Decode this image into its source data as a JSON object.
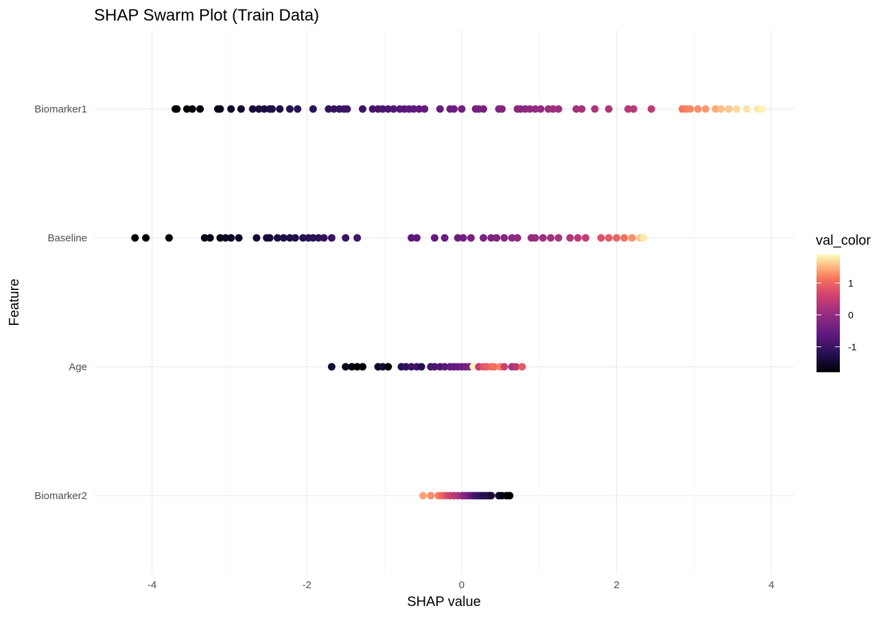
{
  "chart_data": {
    "type": "scatter",
    "subtype": "swarm",
    "title": "SHAP Swarm Plot (Train Data)",
    "xlabel": "SHAP value",
    "ylabel": "Feature",
    "xlim": [
      -4.75,
      4.3
    ],
    "x_ticks": [
      -4,
      -2,
      0,
      2,
      4
    ],
    "x_tick_labels": [
      "-4",
      "-2",
      "0",
      "2",
      "4"
    ],
    "features": [
      "Biomarker1",
      "Baseline",
      "Age",
      "Biomarker2"
    ],
    "grid": true,
    "legend": {
      "title": "val_color",
      "position": "right",
      "colormap": "magma",
      "range": [
        -1.8,
        1.9
      ],
      "ticks": [
        -1,
        0,
        1
      ],
      "tick_labels": [
        "-1",
        "0",
        "1"
      ]
    },
    "series": [
      {
        "feature": "Biomarker1",
        "points": [
          [
            -3.7,
            -1.8
          ],
          [
            -3.68,
            -1.8
          ],
          [
            -3.55,
            -1.75
          ],
          [
            -3.48,
            -1.75
          ],
          [
            -3.38,
            -1.7
          ],
          [
            -3.15,
            -1.65
          ],
          [
            -3.12,
            -1.65
          ],
          [
            -2.98,
            -1.55
          ],
          [
            -2.85,
            -1.5
          ],
          [
            -2.7,
            -1.4
          ],
          [
            -2.62,
            -1.4
          ],
          [
            -2.55,
            -1.35
          ],
          [
            -2.48,
            -1.35
          ],
          [
            -2.45,
            -1.3
          ],
          [
            -2.35,
            -1.3
          ],
          [
            -2.22,
            -1.25
          ],
          [
            -2.12,
            -1.2
          ],
          [
            -1.92,
            -1.15
          ],
          [
            -1.72,
            -1.1
          ],
          [
            -1.65,
            -1.05
          ],
          [
            -1.58,
            -1.05
          ],
          [
            -1.52,
            -1.0
          ],
          [
            -1.48,
            -1.0
          ],
          [
            -1.28,
            -0.95
          ],
          [
            -1.15,
            -0.9
          ],
          [
            -1.08,
            -0.9
          ],
          [
            -1.02,
            -0.85
          ],
          [
            -0.95,
            -0.8
          ],
          [
            -0.88,
            -0.75
          ],
          [
            -0.8,
            -0.7
          ],
          [
            -0.74,
            -0.7
          ],
          [
            -0.68,
            -0.65
          ],
          [
            -0.62,
            -0.6
          ],
          [
            -0.55,
            -0.6
          ],
          [
            -0.48,
            -0.55
          ],
          [
            -0.28,
            -0.5
          ],
          [
            -0.15,
            -0.45
          ],
          [
            -0.1,
            -0.45
          ],
          [
            0.0,
            -0.4
          ],
          [
            0.18,
            -0.35
          ],
          [
            0.22,
            -0.3
          ],
          [
            0.28,
            -0.3
          ],
          [
            0.48,
            -0.25
          ],
          [
            0.52,
            -0.2
          ],
          [
            0.72,
            -0.15
          ],
          [
            0.76,
            -0.1
          ],
          [
            0.82,
            -0.1
          ],
          [
            0.88,
            -0.05
          ],
          [
            0.95,
            0.0
          ],
          [
            1.02,
            0.0
          ],
          [
            1.12,
            0.05
          ],
          [
            1.18,
            0.1
          ],
          [
            1.25,
            0.1
          ],
          [
            1.48,
            0.15
          ],
          [
            1.55,
            0.2
          ],
          [
            1.72,
            0.25
          ],
          [
            1.9,
            0.3
          ],
          [
            2.15,
            0.35
          ],
          [
            2.22,
            0.4
          ],
          [
            2.45,
            0.45
          ],
          [
            2.85,
            1.15
          ],
          [
            2.9,
            1.2
          ],
          [
            2.95,
            1.25
          ],
          [
            3.05,
            1.3
          ],
          [
            3.15,
            1.35
          ],
          [
            3.28,
            1.45
          ],
          [
            3.35,
            1.55
          ],
          [
            3.45,
            1.6
          ],
          [
            3.55,
            1.7
          ],
          [
            3.68,
            1.75
          ],
          [
            3.82,
            1.8
          ],
          [
            3.88,
            1.85
          ]
        ]
      },
      {
        "feature": "Baseline",
        "points": [
          [
            -4.22,
            -1.8
          ],
          [
            -4.08,
            -1.8
          ],
          [
            -3.78,
            -1.75
          ],
          [
            -3.32,
            -1.7
          ],
          [
            -3.25,
            -1.7
          ],
          [
            -3.12,
            -1.65
          ],
          [
            -3.05,
            -1.6
          ],
          [
            -2.98,
            -1.6
          ],
          [
            -2.88,
            -1.55
          ],
          [
            -2.65,
            -1.45
          ],
          [
            -2.52,
            -1.4
          ],
          [
            -2.48,
            -1.4
          ],
          [
            -2.38,
            -1.35
          ],
          [
            -2.3,
            -1.35
          ],
          [
            -2.22,
            -1.3
          ],
          [
            -2.15,
            -1.3
          ],
          [
            -2.05,
            -1.25
          ],
          [
            -1.98,
            -1.2
          ],
          [
            -1.92,
            -1.2
          ],
          [
            -1.85,
            -1.15
          ],
          [
            -1.78,
            -1.1
          ],
          [
            -1.68,
            -1.05
          ],
          [
            -1.5,
            -1.0
          ],
          [
            -1.35,
            -0.95
          ],
          [
            -0.65,
            -0.7
          ],
          [
            -0.58,
            -0.65
          ],
          [
            -0.35,
            -0.55
          ],
          [
            -0.22,
            -0.5
          ],
          [
            -0.05,
            -0.45
          ],
          [
            0.02,
            -0.4
          ],
          [
            0.12,
            -0.35
          ],
          [
            0.28,
            -0.3
          ],
          [
            0.38,
            -0.25
          ],
          [
            0.45,
            -0.2
          ],
          [
            0.55,
            -0.15
          ],
          [
            0.65,
            -0.1
          ],
          [
            0.72,
            -0.05
          ],
          [
            0.9,
            0.0
          ],
          [
            0.95,
            0.05
          ],
          [
            1.05,
            0.1
          ],
          [
            1.15,
            0.15
          ],
          [
            1.25,
            0.2
          ],
          [
            1.4,
            0.3
          ],
          [
            1.5,
            0.4
          ],
          [
            1.6,
            0.5
          ],
          [
            1.8,
            0.8
          ],
          [
            1.9,
            0.9
          ],
          [
            2.0,
            1.0
          ],
          [
            2.1,
            1.1
          ],
          [
            2.2,
            1.3
          ],
          [
            2.3,
            1.6
          ],
          [
            2.35,
            1.8
          ]
        ]
      },
      {
        "feature": "Age",
        "points": [
          [
            -1.68,
            -1.5
          ],
          [
            -1.5,
            -1.6
          ],
          [
            -1.42,
            -1.7
          ],
          [
            -1.35,
            -1.75
          ],
          [
            -1.28,
            -1.8
          ],
          [
            -1.08,
            -1.5
          ],
          [
            -1.02,
            -1.45
          ],
          [
            -0.95,
            -1.8
          ],
          [
            -0.78,
            -1.2
          ],
          [
            -0.72,
            -1.1
          ],
          [
            -0.65,
            -1.0
          ],
          [
            -0.58,
            -0.95
          ],
          [
            -0.52,
            -1.25
          ],
          [
            -0.4,
            -0.9
          ],
          [
            -0.35,
            -0.85
          ],
          [
            -0.28,
            -0.8
          ],
          [
            -0.22,
            -0.7
          ],
          [
            -0.15,
            -0.6
          ],
          [
            -0.1,
            -0.55
          ],
          [
            -0.05,
            -0.5
          ],
          [
            0.0,
            -0.45
          ],
          [
            0.05,
            -0.4
          ],
          [
            0.1,
            -0.3
          ],
          [
            0.15,
            1.85
          ],
          [
            0.22,
            0.5
          ],
          [
            0.28,
            0.8
          ],
          [
            0.32,
            0.9
          ],
          [
            0.38,
            1.0
          ],
          [
            0.42,
            1.1
          ],
          [
            0.5,
            1.2
          ],
          [
            0.55,
            0.6
          ],
          [
            0.65,
            0.2
          ],
          [
            0.7,
            0.4
          ],
          [
            0.78,
            0.9
          ]
        ]
      },
      {
        "feature": "Biomarker2",
        "points": [
          [
            -0.5,
            1.4
          ],
          [
            -0.4,
            1.3
          ],
          [
            -0.3,
            1.2
          ],
          [
            -0.25,
            1.0
          ],
          [
            -0.2,
            0.8
          ],
          [
            -0.15,
            0.6
          ],
          [
            -0.1,
            0.4
          ],
          [
            -0.05,
            0.3
          ],
          [
            0.0,
            0.1
          ],
          [
            0.02,
            0.0
          ],
          [
            0.05,
            -0.2
          ],
          [
            0.08,
            -0.3
          ],
          [
            0.12,
            -0.5
          ],
          [
            0.15,
            -0.7
          ],
          [
            0.18,
            -0.9
          ],
          [
            0.22,
            -1.0
          ],
          [
            0.25,
            -1.1
          ],
          [
            0.28,
            -1.2
          ],
          [
            0.32,
            -1.3
          ],
          [
            0.35,
            -1.2
          ],
          [
            0.38,
            -1.4
          ],
          [
            0.48,
            -1.55
          ],
          [
            0.52,
            -1.7
          ],
          [
            0.58,
            -1.75
          ],
          [
            0.62,
            -1.8
          ]
        ]
      }
    ]
  }
}
